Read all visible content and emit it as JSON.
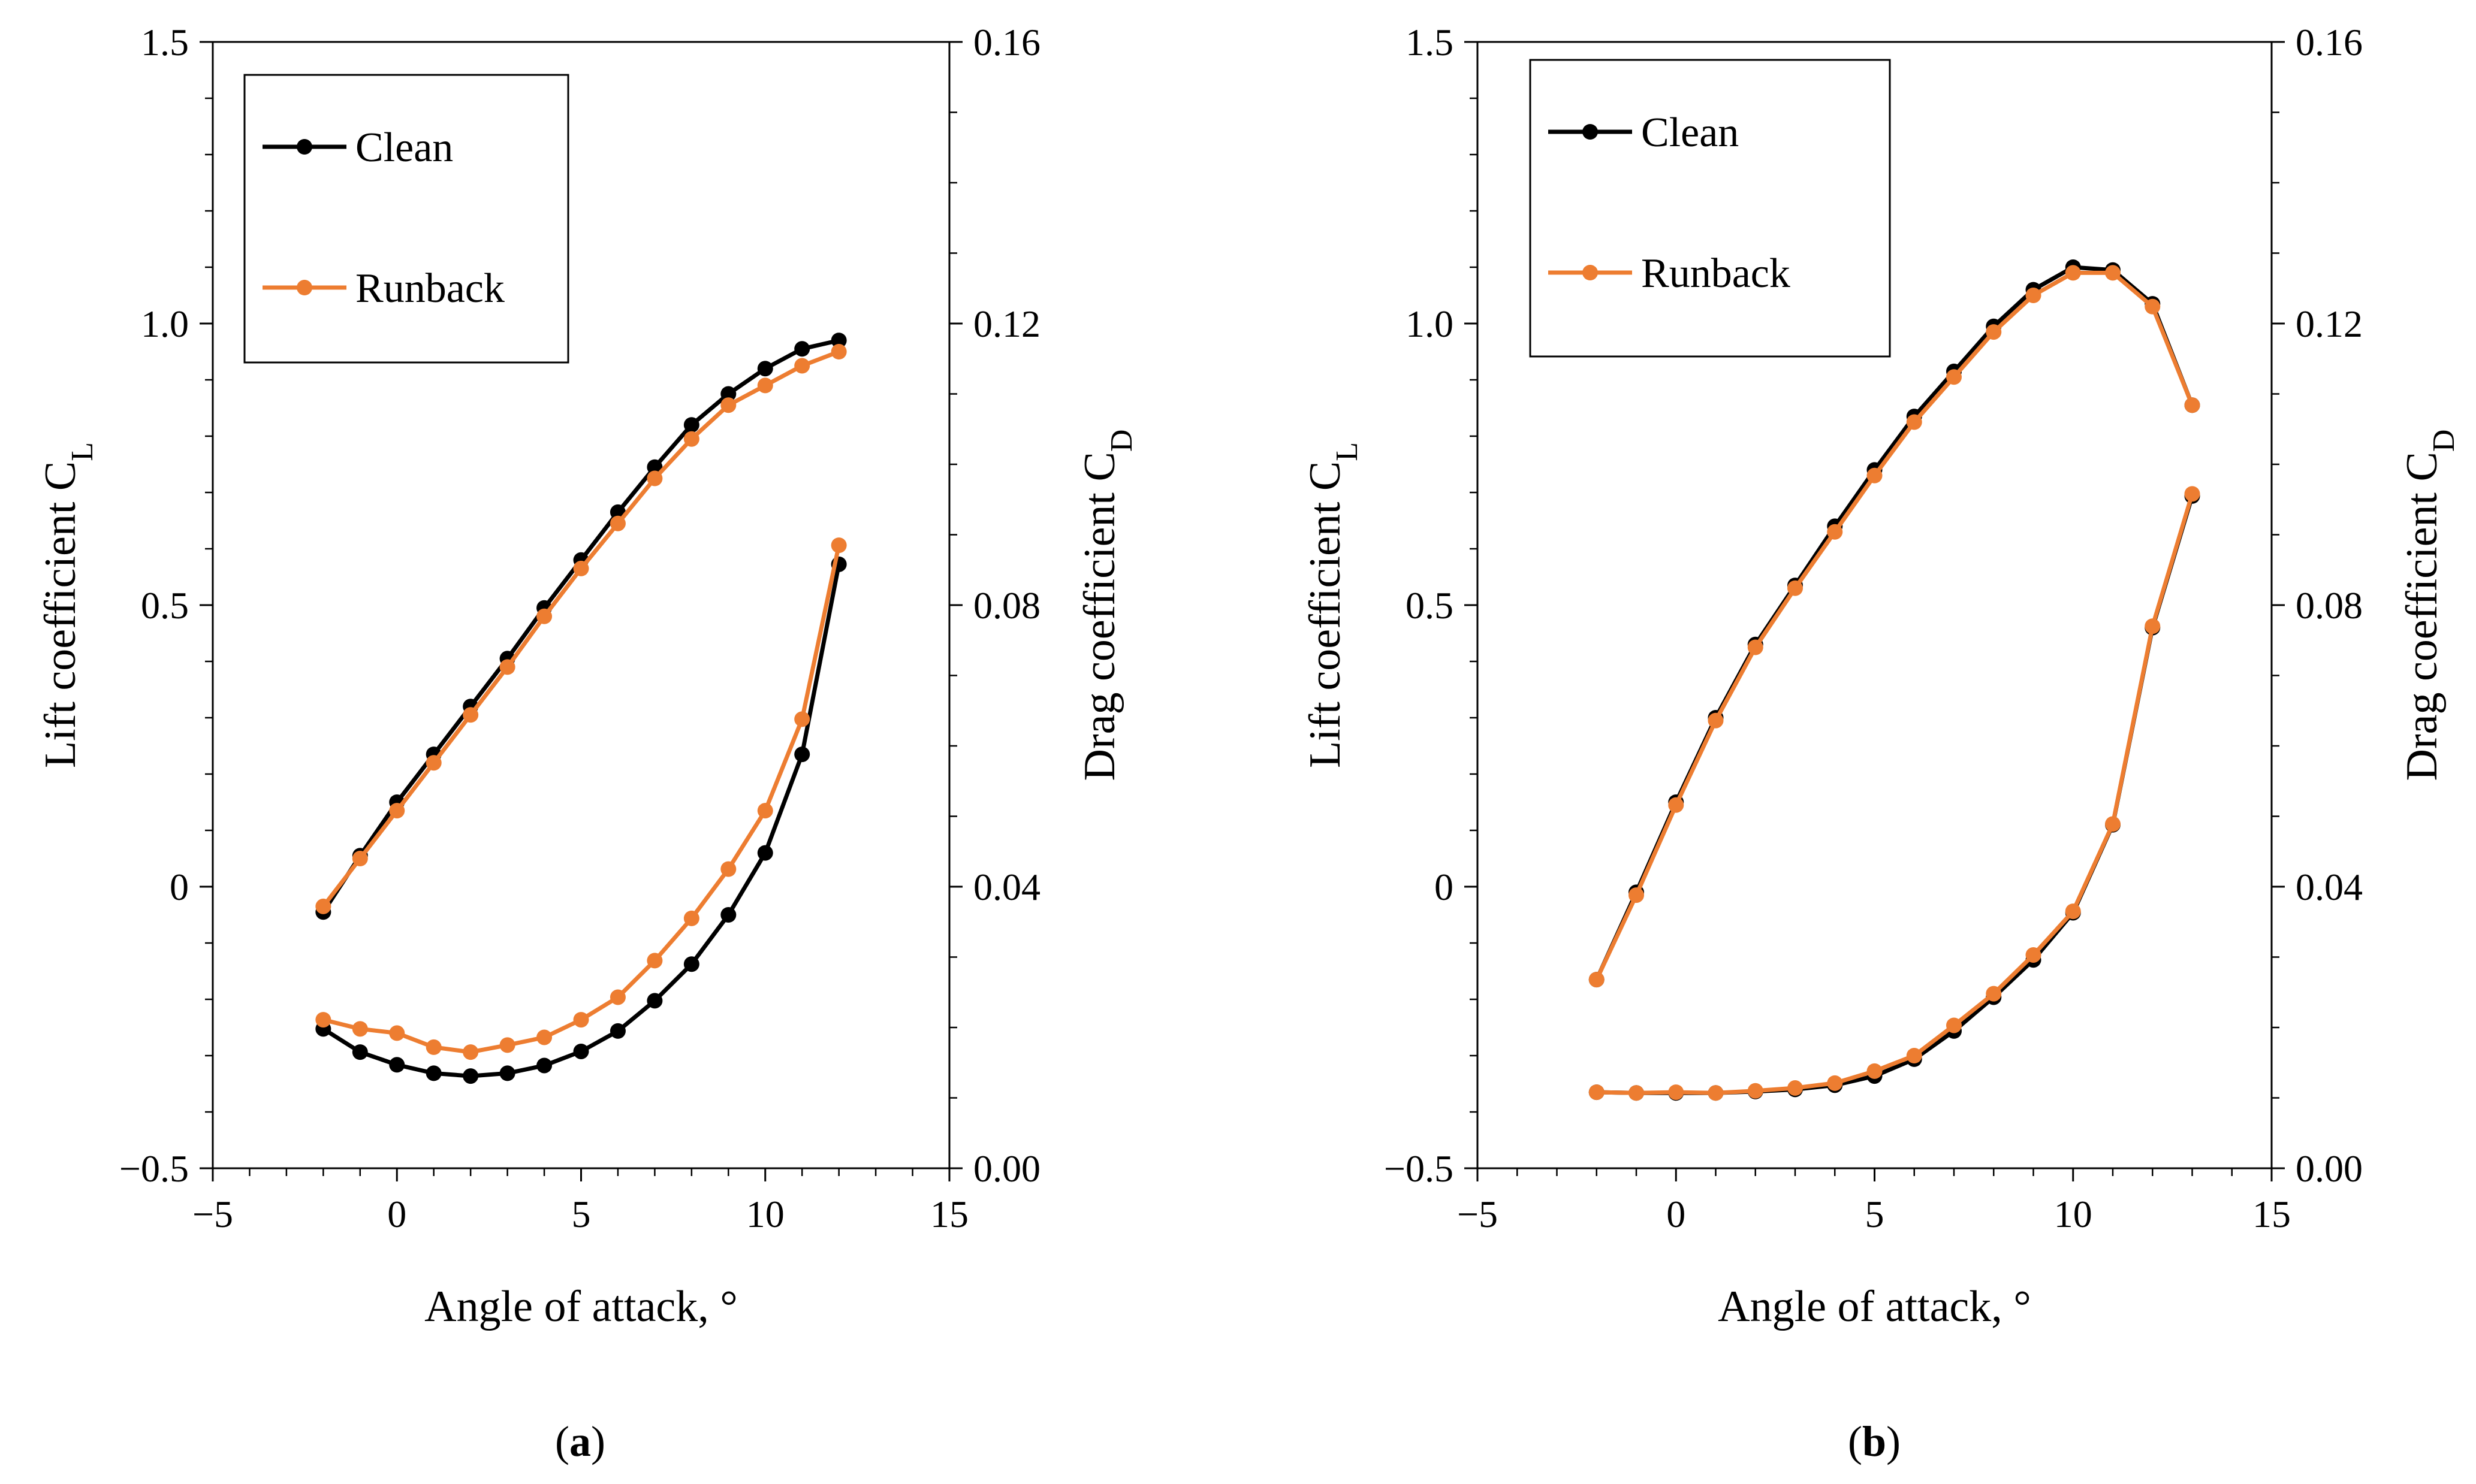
{
  "chart_data": [
    {
      "type": "line",
      "panel_label": {
        "open": "(",
        "letter": "a",
        "close": ")"
      },
      "xlabel": "Angle of attack, °",
      "ylabel": {
        "text": "Lift coefficient C",
        "sub": "L"
      },
      "y2label": {
        "text": "Drag coefficient C",
        "sub": "D"
      },
      "xlim": [
        -5,
        15
      ],
      "ylim": [
        -0.5,
        1.5
      ],
      "y2lim": [
        0.0,
        0.16
      ],
      "xticks": [
        "−5",
        "0",
        "5",
        "10",
        "15"
      ],
      "yticks": [
        "−0.5",
        "0",
        "0.5",
        "1.0",
        "1.5"
      ],
      "y2ticks": [
        "0.00",
        "0.04",
        "0.08",
        "0.12",
        "0.16"
      ],
      "grid": false,
      "legend": {
        "placement": "top-left",
        "entries": [
          {
            "name": "Clean",
            "color": "#000000"
          },
          {
            "name": "Runback",
            "color": "#ED7D31"
          }
        ]
      },
      "x": [
        -2,
        -1,
        0,
        1,
        2,
        3,
        4,
        5,
        6,
        7,
        8,
        9,
        10,
        11,
        12
      ],
      "series": [
        {
          "name": "Clean",
          "axis": "left",
          "color": "#000000",
          "values": [
            -0.045,
            0.055,
            0.15,
            0.235,
            0.32,
            0.405,
            0.495,
            0.58,
            0.665,
            0.745,
            0.82,
            0.875,
            0.92,
            0.955,
            0.97
          ]
        },
        {
          "name": "Runback",
          "axis": "left",
          "color": "#ED7D31",
          "values": [
            -0.035,
            0.05,
            0.135,
            0.22,
            0.305,
            0.39,
            0.48,
            0.565,
            0.645,
            0.725,
            0.795,
            0.855,
            0.89,
            0.925,
            0.95
          ]
        },
        {
          "name": "Clean",
          "axis": "right",
          "color": "#000000",
          "values": [
            0.0198,
            0.0165,
            0.0147,
            0.0135,
            0.0131,
            0.0135,
            0.0146,
            0.0166,
            0.0195,
            0.0238,
            0.029,
            0.036,
            0.0448,
            0.0588,
            0.0858
          ]
        },
        {
          "name": "Runback",
          "axis": "right",
          "color": "#ED7D31",
          "values": [
            0.0211,
            0.0198,
            0.0192,
            0.0172,
            0.0165,
            0.0175,
            0.0186,
            0.0211,
            0.0243,
            0.0295,
            0.0355,
            0.0425,
            0.0508,
            0.0638,
            0.0885
          ]
        }
      ]
    },
    {
      "type": "line",
      "panel_label": {
        "open": "(",
        "letter": "b",
        "close": ")"
      },
      "xlabel": "Angle of attack, °",
      "ylabel": {
        "text": "Lift coefficient C",
        "sub": "L"
      },
      "y2label": {
        "text": "Drag coefficient C",
        "sub": "D"
      },
      "xlim": [
        -5,
        15
      ],
      "ylim": [
        -0.5,
        1.5
      ],
      "y2lim": [
        0.0,
        0.16
      ],
      "xticks": [
        "−5",
        "0",
        "5",
        "10",
        "15"
      ],
      "yticks": [
        "−0.5",
        "0",
        "0.5",
        "1.0",
        "1.5"
      ],
      "y2ticks": [
        "0.00",
        "0.04",
        "0.08",
        "0.12",
        "0.16"
      ],
      "grid": false,
      "legend": {
        "placement": "top-left",
        "entries": [
          {
            "name": "Clean",
            "color": "#000000"
          },
          {
            "name": "Runback",
            "color": "#ED7D31"
          }
        ]
      },
      "x": [
        -2,
        -1,
        0,
        1,
        2,
        3,
        4,
        5,
        6,
        7,
        8,
        9,
        10,
        11,
        12,
        13
      ],
      "series": [
        {
          "name": "Clean",
          "axis": "left",
          "color": "#000000",
          "values": [
            -0.165,
            -0.01,
            0.15,
            0.3,
            0.43,
            0.535,
            0.64,
            0.74,
            0.835,
            0.915,
            0.995,
            1.06,
            1.1,
            1.095,
            1.035,
            0.855
          ]
        },
        {
          "name": "Runback",
          "axis": "left",
          "color": "#ED7D31",
          "values": [
            -0.165,
            -0.015,
            0.145,
            0.295,
            0.425,
            0.53,
            0.63,
            0.73,
            0.825,
            0.905,
            0.985,
            1.05,
            1.09,
            1.09,
            1.03,
            0.855
          ]
        },
        {
          "name": "Clean",
          "axis": "right",
          "color": "#000000",
          "values": [
            0.0108,
            0.0107,
            0.0107,
            0.0107,
            0.0109,
            0.0112,
            0.0118,
            0.0131,
            0.0155,
            0.0195,
            0.0243,
            0.0296,
            0.0363,
            0.0488,
            0.0768,
            0.0955
          ]
        },
        {
          "name": "Runback",
          "axis": "right",
          "color": "#ED7D31",
          "values": [
            0.0108,
            0.0107,
            0.0108,
            0.0107,
            0.011,
            0.0114,
            0.0121,
            0.0138,
            0.016,
            0.0203,
            0.0248,
            0.0303,
            0.0365,
            0.0489,
            0.077,
            0.0958
          ]
        }
      ]
    }
  ]
}
